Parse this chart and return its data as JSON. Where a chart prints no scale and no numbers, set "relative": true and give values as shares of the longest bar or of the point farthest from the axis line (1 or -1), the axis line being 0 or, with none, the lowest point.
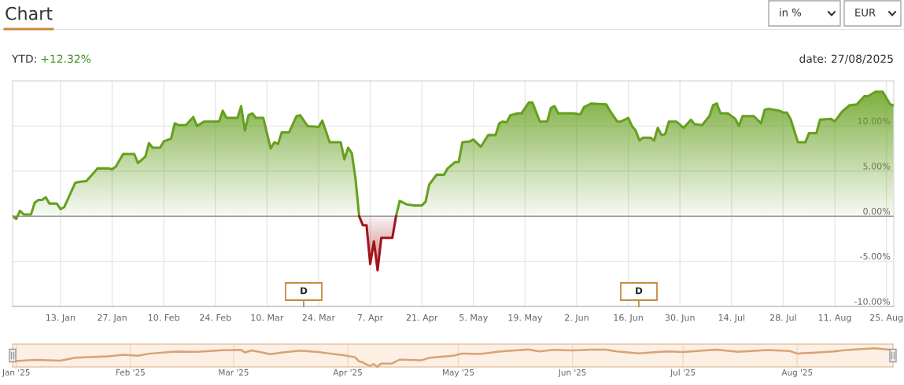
{
  "chart_data": [
    {
      "type": "area",
      "title": "Chart",
      "subtitle": "YTD: +12.32%",
      "annotations": [
        "date: 27/08/2025",
        "in %",
        "EUR",
        "D",
        "D"
      ],
      "series": [
        {
          "type": "area",
          "color": "#66a01e",
          "x": [
            "2024-12-31",
            "2025-01-01",
            "2025-01-02",
            "2025-01-03",
            "2025-01-05",
            "2025-01-06",
            "2025-01-07",
            "2025-01-08",
            "2025-01-09",
            "2025-01-10",
            "2025-01-12",
            "2025-01-13",
            "2025-01-14",
            "2025-01-17",
            "2025-01-18",
            "2025-01-20",
            "2025-01-22",
            "2025-01-23",
            "2025-01-26",
            "2025-01-27",
            "2025-01-28",
            "2025-01-30",
            "2025-02-02",
            "2025-02-03",
            "2025-02-05",
            "2025-02-06",
            "2025-02-07",
            "2025-02-09",
            "2025-02-10",
            "2025-02-12",
            "2025-02-13",
            "2025-02-14",
            "2025-02-16",
            "2025-02-18",
            "2025-02-19",
            "2025-02-21",
            "2025-02-25",
            "2025-02-26",
            "2025-02-27",
            "2025-03-02",
            "2025-03-03",
            "2025-03-04",
            "2025-03-05",
            "2025-03-06",
            "2025-03-07",
            "2025-03-09",
            "2025-03-11",
            "2025-03-12",
            "2025-03-13",
            "2025-03-14",
            "2025-03-16",
            "2025-03-18",
            "2025-03-19",
            "2025-03-21",
            "2025-03-24",
            "2025-03-25",
            "2025-03-27",
            "2025-03-30",
            "2025-03-31",
            "2025-04-01",
            "2025-04-02",
            "2025-04-03",
            "2025-04-04",
            "2025-04-09",
            "2025-04-14",
            "2025-04-15",
            "2025-04-17",
            "2025-04-19",
            "2025-04-21",
            "2025-04-22",
            "2025-04-23",
            "2025-04-25",
            "2025-04-27",
            "2025-04-28",
            "2025-04-30",
            "2025-05-01",
            "2025-05-02",
            "2025-05-04",
            "2025-05-05",
            "2025-05-07",
            "2025-05-09",
            "2025-05-11",
            "2025-05-12",
            "2025-05-13",
            "2025-05-14",
            "2025-05-15",
            "2025-05-17",
            "2025-05-18",
            "2025-05-20",
            "2025-05-21",
            "2025-05-23",
            "2025-05-25",
            "2025-05-26",
            "2025-05-27",
            "2025-05-28",
            "2025-06-01",
            "2025-06-03",
            "2025-06-04",
            "2025-06-06",
            "2025-06-10",
            "2025-06-11",
            "2025-06-13",
            "2025-06-14",
            "2025-06-16",
            "2025-06-17",
            "2025-06-18",
            "2025-06-19",
            "2025-06-20",
            "2025-06-22",
            "2025-06-23",
            "2025-06-24",
            "2025-06-25",
            "2025-06-26",
            "2025-06-27",
            "2025-06-29",
            "2025-07-01",
            "2025-07-03",
            "2025-07-04",
            "2025-07-06",
            "2025-07-08",
            "2025-07-09",
            "2025-07-10",
            "2025-07-11",
            "2025-07-13",
            "2025-07-15",
            "2025-07-16",
            "2025-07-17",
            "2025-07-20",
            "2025-07-22",
            "2025-07-23",
            "2025-07-24",
            "2025-07-27",
            "2025-07-28",
            "2025-07-29",
            "2025-07-30",
            "2025-08-01",
            "2025-08-03",
            "2025-08-04",
            "2025-08-06",
            "2025-08-07",
            "2025-08-10",
            "2025-08-11",
            "2025-08-13",
            "2025-08-15",
            "2025-08-17",
            "2025-08-19",
            "2025-08-20",
            "2025-08-22",
            "2025-08-24",
            "2025-08-26",
            "2025-08-27"
          ],
          "values": [
            0.0,
            -0.3,
            0.6,
            0.2,
            0.2,
            1.5,
            1.8,
            1.8,
            2.1,
            1.4,
            1.4,
            0.8,
            1.0,
            3.7,
            3.8,
            3.9,
            4.8,
            5.3,
            5.3,
            5.2,
            5.5,
            6.9,
            6.9,
            5.9,
            6.6,
            8.1,
            7.6,
            7.6,
            8.3,
            8.6,
            10.3,
            10.1,
            10.1,
            11.0,
            10.0,
            10.5,
            10.5,
            11.7,
            10.9,
            10.9,
            12.2,
            9.5,
            11.2,
            11.4,
            10.9,
            10.9,
            7.5,
            8.2,
            8.0,
            9.3,
            9.3,
            11.1,
            11.2,
            10.0,
            9.9,
            10.6,
            8.2,
            8.2,
            6.3,
            7.6,
            7.0,
            4.2,
            0.0,
            null,
            0.0,
            1.7,
            1.3,
            1.2,
            1.2,
            1.6,
            3.5,
            4.6,
            4.6,
            5.3,
            6.0,
            6.0,
            8.2,
            8.3,
            8.5,
            7.7,
            9.0,
            9.0,
            10.3,
            10.5,
            10.4,
            11.2,
            11.4,
            11.4,
            12.6,
            12.6,
            10.5,
            10.5,
            12.0,
            12.2,
            11.4,
            11.4,
            11.3,
            12.1,
            12.5,
            12.4,
            11.7,
            10.5,
            10.5,
            10.9,
            10.0,
            9.5,
            8.4,
            8.7,
            8.7,
            8.4,
            9.8,
            9.0,
            9.1,
            10.5,
            10.5,
            9.8,
            10.7,
            10.2,
            10.1,
            11.1,
            12.3,
            12.5,
            11.4,
            11.4,
            10.8,
            10.0,
            11.1,
            11.1,
            10.3,
            11.8,
            11.9,
            11.7,
            11.5,
            11.5,
            10.8,
            8.2,
            8.2,
            9.2,
            9.2,
            10.7,
            10.8,
            10.5,
            11.6,
            12.3,
            12.4,
            13.3,
            13.3,
            13.8,
            13.8,
            12.4,
            12.3
          ]
        },
        {
          "type": "area",
          "color": "#a3141c",
          "x": [
            "2025-04-04",
            "2025-04-05",
            "2025-04-06",
            "2025-04-07",
            "2025-04-08",
            "2025-04-09",
            "2025-04-10",
            "2025-04-13",
            "2025-04-14"
          ],
          "values": [
            0.0,
            -1.0,
            -1.0,
            -5.3,
            -2.8,
            -6.0,
            -2.4,
            -2.4,
            0.0
          ]
        }
      ],
      "xlim": [
        "2024-12-31",
        "2025-08-27"
      ],
      "ylim": [
        -10,
        15
      ],
      "xticks": [
        {
          "value": "2025-01-13",
          "label": "13. Jan"
        },
        {
          "value": "2025-01-27",
          "label": "27. Jan"
        },
        {
          "value": "2025-02-10",
          "label": "10. Feb"
        },
        {
          "value": "2025-02-24",
          "label": "24. Feb"
        },
        {
          "value": "2025-03-10",
          "label": "10. Mar"
        },
        {
          "value": "2025-03-24",
          "label": "24. Mar"
        },
        {
          "value": "2025-04-07",
          "label": "7. Apr"
        },
        {
          "value": "2025-04-21",
          "label": "21. Apr"
        },
        {
          "value": "2025-05-05",
          "label": "5. May"
        },
        {
          "value": "2025-05-19",
          "label": "19. May"
        },
        {
          "value": "2025-06-02",
          "label": "2. Jun"
        },
        {
          "value": "2025-06-16",
          "label": "16. Jun"
        },
        {
          "value": "2025-06-30",
          "label": "30. Jun"
        },
        {
          "value": "2025-07-14",
          "label": "14. Jul"
        },
        {
          "value": "2025-07-28",
          "label": "28. Jul"
        },
        {
          "value": "2025-08-11",
          "label": "11. Aug"
        },
        {
          "value": "2025-08-25",
          "label": "25. Aug"
        }
      ],
      "yticks": [
        {
          "value": -10,
          "label": "-10.00%"
        },
        {
          "value": -5,
          "label": "-5.00%"
        },
        {
          "value": 0,
          "label": "0.00%"
        },
        {
          "value": 5,
          "label": "5.00%"
        },
        {
          "value": 10,
          "label": "10.00%"
        }
      ],
      "grid": true,
      "ref_lines": [
        {
          "axis": "y",
          "value": 0,
          "color": "#999999"
        }
      ]
    },
    {
      "type": "line",
      "relative": true,
      "x": [
        "2024-12-31",
        "2025-01-06",
        "2025-01-13",
        "2025-01-17",
        "2025-01-26",
        "2025-01-30",
        "2025-02-03",
        "2025-02-06",
        "2025-02-13",
        "2025-02-19",
        "2025-02-26",
        "2025-03-03",
        "2025-03-04",
        "2025-03-06",
        "2025-03-11",
        "2025-03-14",
        "2025-03-19",
        "2025-03-24",
        "2025-03-27",
        "2025-03-31",
        "2025-04-03",
        "2025-04-04",
        "2025-04-05",
        "2025-04-07",
        "2025-04-08",
        "2025-04-09",
        "2025-04-10",
        "2025-04-13",
        "2025-04-15",
        "2025-04-21",
        "2025-04-23",
        "2025-04-30",
        "2025-05-02",
        "2025-05-07",
        "2025-05-12",
        "2025-05-20",
        "2025-05-23",
        "2025-05-27",
        "2025-06-01",
        "2025-06-06",
        "2025-06-10",
        "2025-06-13",
        "2025-06-19",
        "2025-06-24",
        "2025-06-27",
        "2025-07-01",
        "2025-07-10",
        "2025-07-16",
        "2025-07-24",
        "2025-07-30",
        "2025-08-01",
        "2025-08-06",
        "2025-08-11",
        "2025-08-15",
        "2025-08-22",
        "2025-08-26",
        "2025-08-27"
      ],
      "values": [
        0.3,
        0.38,
        0.34,
        0.49,
        0.57,
        0.65,
        0.6,
        0.71,
        0.82,
        0.81,
        0.89,
        0.92,
        0.78,
        0.88,
        0.68,
        0.77,
        0.87,
        0.8,
        0.72,
        0.62,
        0.52,
        0.3,
        0.25,
        0.04,
        0.16,
        0,
        0.18,
        0.18,
        0.39,
        0.36,
        0.48,
        0.61,
        0.72,
        0.69,
        0.82,
        0.94,
        0.83,
        0.92,
        0.88,
        0.93,
        0.93,
        0.83,
        0.73,
        0.8,
        0.83,
        0.8,
        0.93,
        0.81,
        0.9,
        0.85,
        0.72,
        0.77,
        0.83,
        0.92,
        1,
        0.93,
        0.92
      ],
      "color": "#d9a273",
      "xlim": [
        "2024-12-31",
        "2025-08-27"
      ],
      "xticks": [
        {
          "value": "2025-01-01",
          "label": "Jan '25"
        },
        {
          "value": "2025-02-01",
          "label": "Feb '25"
        },
        {
          "value": "2025-03-01",
          "label": "Mar '25"
        },
        {
          "value": "2025-04-01",
          "label": "Apr '25"
        },
        {
          "value": "2025-05-01",
          "label": "May '25"
        },
        {
          "value": "2025-06-01",
          "label": "Jun '25"
        },
        {
          "value": "2025-07-01",
          "label": "Jul '25"
        },
        {
          "value": "2025-08-01",
          "label": "Aug '25"
        }
      ],
      "tick_labels": "x",
      "grid": "x",
      "bands": [
        {
          "axis": "x",
          "from": "2024-12-31",
          "to": "2025-08-27",
          "color": "#fcefe3"
        }
      ]
    }
  ]
}
